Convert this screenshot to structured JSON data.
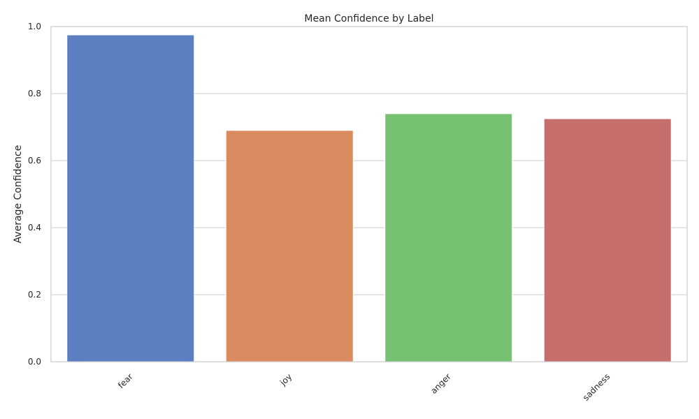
{
  "chart_data": {
    "type": "bar",
    "title": "Mean Confidence by Label",
    "xlabel": "",
    "ylabel": "Average Confidence",
    "categories": [
      "fear",
      "joy",
      "anger",
      "sadness"
    ],
    "values": [
      0.975,
      0.69,
      0.74,
      0.725
    ],
    "colors": [
      "#5b7fc1",
      "#d98b5f",
      "#77c172",
      "#c56e6c"
    ],
    "ylim": [
      0,
      1.0
    ],
    "yticks": [
      "0.0",
      "0.2",
      "0.4",
      "0.6",
      "0.8",
      "1.0"
    ],
    "ytick_values": [
      0,
      0.2,
      0.4,
      0.6,
      0.8,
      1.0
    ],
    "grid": "y",
    "legend": "none",
    "xtick_rotation": 45
  }
}
